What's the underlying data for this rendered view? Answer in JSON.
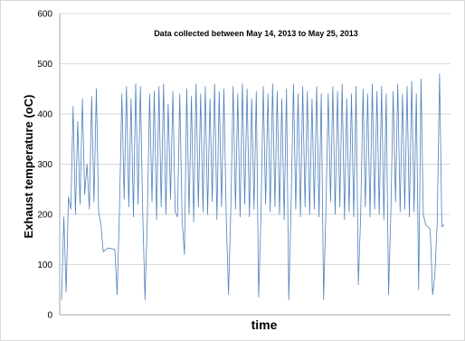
{
  "chart_data": {
    "type": "line",
    "title": "",
    "annotation": "Data collected between  May 14, 2013 to May 25, 2013",
    "xlabel": "time",
    "ylabel": "Exhaust temperature (oC)",
    "ylim": [
      0,
      600
    ],
    "yticks": [
      "0",
      "100",
      "200",
      "300",
      "400",
      "500",
      "600"
    ],
    "grid": "horizontal",
    "legend": "none",
    "series": [
      {
        "color": "#4f81bd",
        "y": [
          30,
          195,
          45,
          235,
          210,
          415,
          200,
          385,
          220,
          430,
          240,
          300,
          210,
          435,
          225,
          450,
          205,
          180,
          125,
          130,
          133,
          132,
          131,
          130,
          40,
          210,
          440,
          230,
          455,
          215,
          430,
          195,
          460,
          220,
          455,
          210,
          30,
          195,
          440,
          225,
          445,
          190,
          455,
          215,
          460,
          200,
          420,
          230,
          445,
          205,
          195,
          440,
          190,
          120,
          450,
          200,
          435,
          185,
          460,
          215,
          440,
          205,
          455,
          200,
          430,
          225,
          460,
          190,
          445,
          215,
          450,
          200,
          40,
          205,
          455,
          210,
          440,
          195,
          460,
          220,
          450,
          195,
          430,
          210,
          445,
          35,
          200,
          455,
          220,
          440,
          205,
          460,
          215,
          445,
          200,
          430,
          190,
          450,
          30,
          220,
          460,
          210,
          440,
          195,
          455,
          215,
          445,
          200,
          430,
          210,
          455,
          195,
          440,
          30,
          210,
          440,
          225,
          455,
          200,
          445,
          215,
          460,
          190,
          430,
          205,
          440,
          195,
          455,
          60,
          200,
          450,
          215,
          440,
          195,
          460,
          210,
          445,
          200,
          455,
          190,
          440,
          40,
          200,
          445,
          225,
          460,
          205,
          440,
          210,
          455,
          195,
          465,
          205,
          440,
          50,
          470,
          200,
          180,
          175,
          170,
          40,
          80,
          185,
          480,
          175,
          180
        ]
      }
    ]
  }
}
